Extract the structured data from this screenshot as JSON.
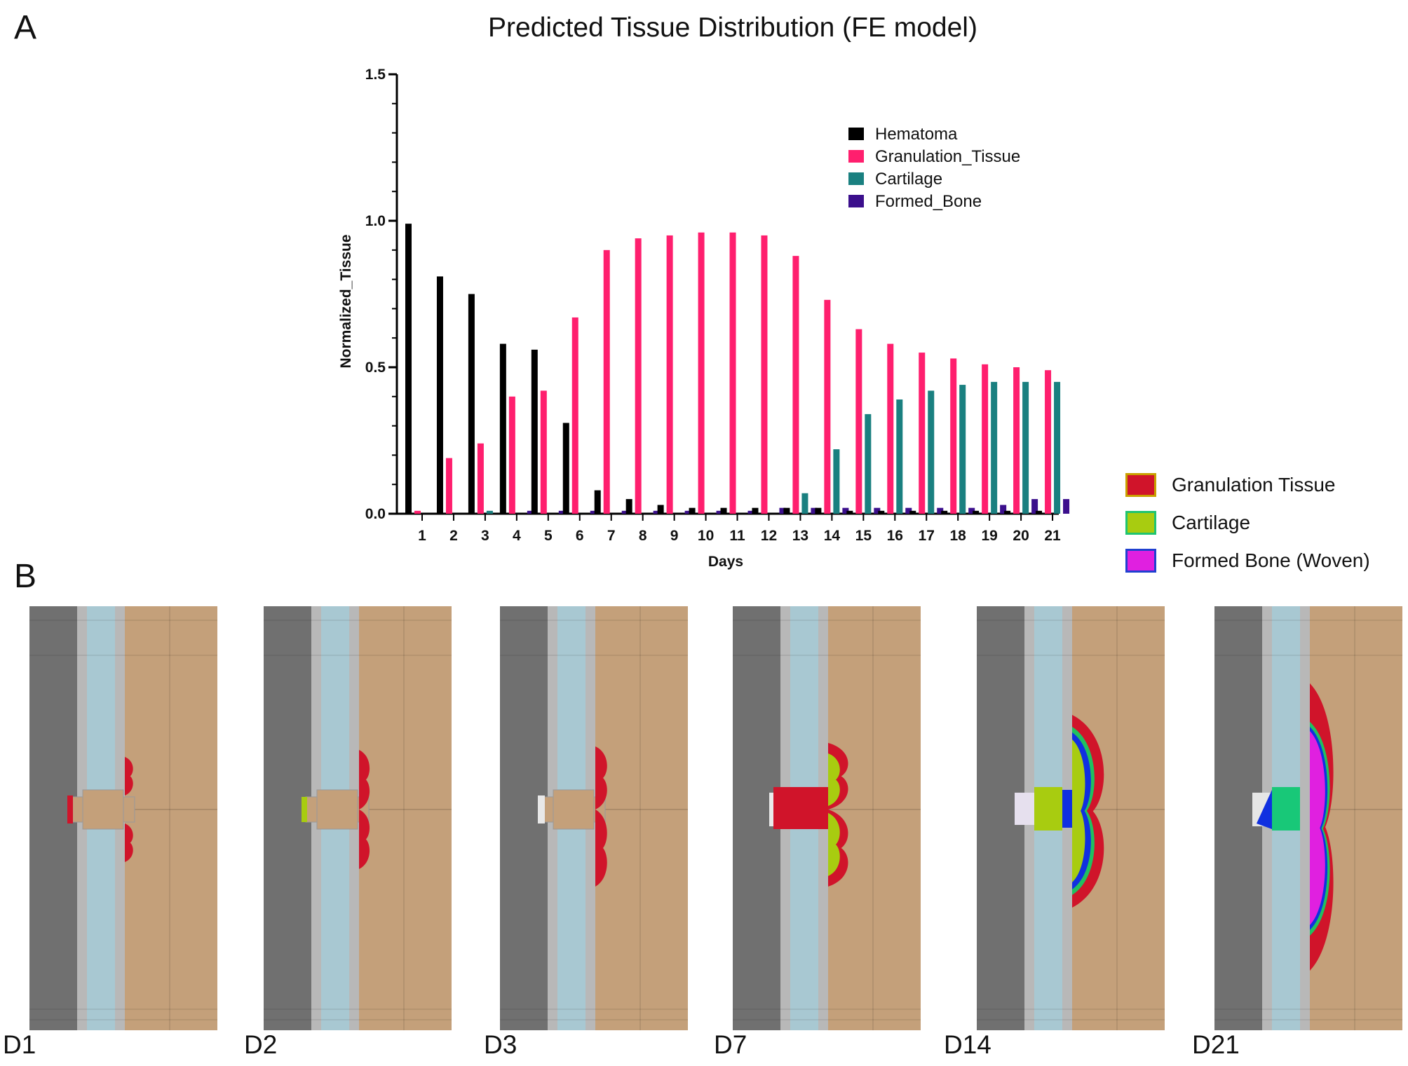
{
  "panels": {
    "a": "A",
    "b": "B"
  },
  "chart_data": {
    "type": "bar",
    "title": "Predicted Tissue Distribution (FE model)",
    "xlabel": "Days",
    "ylabel": "Normalized_Tissue",
    "ylim": [
      0,
      1.5
    ],
    "yticks": [
      "0.0",
      "0.5",
      "1.0",
      "1.5"
    ],
    "ytick_values": [
      0,
      0.5,
      1.0,
      1.5
    ],
    "categories": [
      "1",
      "2",
      "3",
      "4",
      "5",
      "6",
      "7",
      "8",
      "9",
      "10",
      "11",
      "12",
      "13",
      "14",
      "15",
      "16",
      "17",
      "18",
      "19",
      "20",
      "21"
    ],
    "legend_position": "top-right",
    "series": [
      {
        "name": "Hematoma",
        "color": "#000000",
        "values": [
          0.99,
          0.81,
          0.75,
          0.58,
          0.56,
          0.31,
          0.08,
          0.05,
          0.03,
          0.02,
          0.02,
          0.02,
          0.02,
          0.02,
          0.01,
          0.01,
          0.01,
          0.01,
          0.01,
          0.01,
          0.01
        ]
      },
      {
        "name": "Granulation_Tissue",
        "color": "#ff1f6e",
        "values": [
          0.01,
          0.19,
          0.24,
          0.4,
          0.42,
          0.67,
          0.9,
          0.94,
          0.95,
          0.96,
          0.96,
          0.95,
          0.88,
          0.73,
          0.63,
          0.58,
          0.55,
          0.53,
          0.51,
          0.5,
          0.49
        ]
      },
      {
        "name": "Cartilage",
        "color": "#1a8080",
        "values": [
          0,
          0,
          0.01,
          0,
          0,
          0,
          0,
          0,
          0,
          0,
          0,
          0,
          0.07,
          0.22,
          0.34,
          0.39,
          0.42,
          0.44,
          0.45,
          0.45,
          0.45
        ]
      },
      {
        "name": "Formed_Bone",
        "color": "#3b0f8c",
        "values": [
          0,
          0,
          0,
          0.01,
          0.01,
          0.01,
          0.01,
          0.01,
          0.01,
          0.01,
          0.01,
          0.02,
          0.02,
          0.02,
          0.02,
          0.02,
          0.02,
          0.02,
          0.03,
          0.05,
          0.05
        ]
      }
    ]
  },
  "legend_b": [
    {
      "label": "Granulation Tissue",
      "fill": "#d0142a",
      "border": "#c9a000"
    },
    {
      "label": "Cartilage",
      "fill": "#a8cc10",
      "border": "#1fc470"
    },
    {
      "label": "Formed Bone (Woven)",
      "fill": "#e020e0",
      "border": "#2040d0"
    }
  ],
  "simulations": [
    {
      "label": "D1",
      "stage": 1
    },
    {
      "label": "D2",
      "stage": 2
    },
    {
      "label": "D3",
      "stage": 3
    },
    {
      "label": "D7",
      "stage": 7
    },
    {
      "label": "D14",
      "stage": 14
    },
    {
      "label": "D21",
      "stage": 21
    }
  ],
  "colors": {
    "cortex_dark": "#707070",
    "gap_grey": "#b8b8b8",
    "marrow_blue": "#a8c8d2",
    "muscle_tan": "#c4a07a",
    "granulation": "#d0142a",
    "cartilage": "#a8cc10",
    "bone": "#e020e0",
    "front_blue": "#1030e0",
    "front_green": "#20c060",
    "callus_green": "#18c878"
  }
}
